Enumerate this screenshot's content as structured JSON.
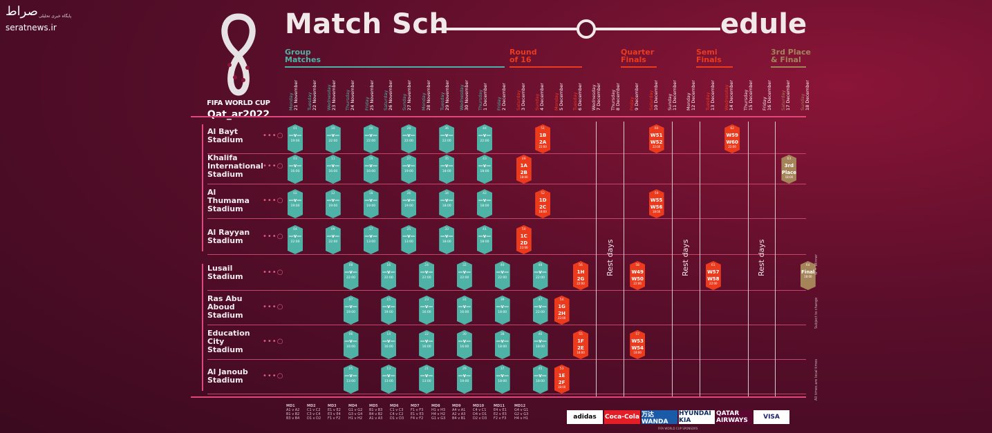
{
  "watermark": {
    "logo": "صراط",
    "sub": "پایگاه خبری تحلیلی",
    "site": "seratnews.ir"
  },
  "emblem": {
    "title": "FIFA WORLD CUP",
    "host": "Qat_ar2022"
  },
  "headline": {
    "part1": "Match Sch",
    "part2": "edule"
  },
  "phases": [
    {
      "label": "Group\nMatches",
      "color": "#4fb2a6"
    },
    {
      "label": "Round\nof 16",
      "color": "#ec3a1d"
    },
    {
      "label": "Quarter\nFinals",
      "color": "#ec3a1d"
    },
    {
      "label": "Semi\nFinals",
      "color": "#ec3a1d"
    },
    {
      "label": "3rd Place\n& Final",
      "color": "#a5845a"
    }
  ],
  "days": [
    {
      "dow": "Monday",
      "date": "21 November",
      "phase": "group"
    },
    {
      "dow": "Tuesday",
      "date": "22 November",
      "phase": "group"
    },
    {
      "dow": "Wednesday",
      "date": "23 November",
      "phase": "group"
    },
    {
      "dow": "Thursday",
      "date": "24 November",
      "phase": "group"
    },
    {
      "dow": "Friday",
      "date": "25 November",
      "phase": "group"
    },
    {
      "dow": "Saturday",
      "date": "26 November",
      "phase": "group"
    },
    {
      "dow": "Sunday",
      "date": "27 November",
      "phase": "group"
    },
    {
      "dow": "Monday",
      "date": "28 November",
      "phase": "group"
    },
    {
      "dow": "Tuesday",
      "date": "29 November",
      "phase": "group"
    },
    {
      "dow": "Wednesday",
      "date": "30 November",
      "phase": "group"
    },
    {
      "dow": "Thursday",
      "date": "1 December",
      "phase": "group"
    },
    {
      "dow": "Friday",
      "date": "2 December",
      "phase": "group"
    },
    {
      "dow": "Saturday",
      "date": "3 December",
      "phase": "ko"
    },
    {
      "dow": "Sunday",
      "date": "4 December",
      "phase": "ko"
    },
    {
      "dow": "Monday",
      "date": "5 December",
      "phase": "ko"
    },
    {
      "dow": "Tuesday",
      "date": "6 December",
      "phase": "ko"
    },
    {
      "dow": "Wednesday",
      "date": "7 December",
      "phase": "rest"
    },
    {
      "dow": "Thursday",
      "date": "8 December",
      "phase": "rest"
    },
    {
      "dow": "Friday",
      "date": "9 December",
      "phase": "ko"
    },
    {
      "dow": "Saturday",
      "date": "10 December",
      "phase": "ko"
    },
    {
      "dow": "Sunday",
      "date": "11 December",
      "phase": "rest"
    },
    {
      "dow": "Monday",
      "date": "12 December",
      "phase": "rest"
    },
    {
      "dow": "Tuesday",
      "date": "13 December",
      "phase": "ko"
    },
    {
      "dow": "Wednesday",
      "date": "14 December",
      "phase": "ko"
    },
    {
      "dow": "Thursday",
      "date": "15 December",
      "phase": "rest"
    },
    {
      "dow": "Friday",
      "date": "16 December",
      "phase": "rest"
    },
    {
      "dow": "Saturday",
      "date": "17 December",
      "phase": "final"
    },
    {
      "dow": "Sunday",
      "date": "18 December",
      "phase": "final"
    }
  ],
  "stadiums": [
    "Al Bayt\nStadium",
    "Khalifa\nInternational\nStadium",
    "Al\nThumama\nStadium",
    "Al Rayyan\nStadium",
    "Lusail\nStadium",
    "Ras Abu\nAboud\nStadium",
    "Education\nCity\nStadium",
    "Al Janoub\nStadium"
  ],
  "group_matches": [
    {
      "row": 0,
      "day": 0,
      "no": "01",
      "teams": "A1\nA2",
      "time": "19:00"
    },
    {
      "row": 0,
      "day": 1,
      "no": "10",
      "teams": "",
      "time": "22:00"
    },
    {
      "row": 0,
      "day": 2,
      "no": "20",
      "teams": "",
      "time": "22:00"
    },
    {
      "row": 0,
      "day": 3,
      "no": "28",
      "teams": "",
      "time": "22:00"
    },
    {
      "row": 0,
      "day": 4,
      "no": "36",
      "teams": "",
      "time": "22:00"
    },
    {
      "row": 0,
      "day": 5,
      "no": "44",
      "teams": "",
      "time": "22:00"
    },
    {
      "row": 1,
      "day": 0,
      "no": "03",
      "teams": "",
      "time": "16:00"
    },
    {
      "row": 1,
      "day": 1,
      "no": "11",
      "teams": "",
      "time": "16:00"
    },
    {
      "row": 1,
      "day": 2,
      "no": "19",
      "teams": "",
      "time": "16:00"
    },
    {
      "row": 1,
      "day": 3,
      "no": "27",
      "teams": "",
      "time": "19:00"
    },
    {
      "row": 1,
      "day": 4,
      "no": "35",
      "teams": "",
      "time": "18:00"
    },
    {
      "row": 1,
      "day": 5,
      "no": "43",
      "teams": "",
      "time": "18:00"
    },
    {
      "row": 2,
      "day": 0,
      "no": "02",
      "teams": "",
      "time": "19:00"
    },
    {
      "row": 2,
      "day": 1,
      "no": "12",
      "teams": "",
      "time": "19:00"
    },
    {
      "row": 2,
      "day": 2,
      "no": "18",
      "teams": "",
      "time": "19:00"
    },
    {
      "row": 2,
      "day": 3,
      "no": "26",
      "teams": "",
      "time": "19:00"
    },
    {
      "row": 2,
      "day": 4,
      "no": "34",
      "teams": "",
      "time": "18:00"
    },
    {
      "row": 2,
      "day": 5,
      "no": "42",
      "teams": "",
      "time": "18:00"
    },
    {
      "row": 3,
      "day": 0,
      "no": "04",
      "teams": "",
      "time": "22:00"
    },
    {
      "row": 3,
      "day": 1,
      "no": "09",
      "teams": "",
      "time": "22:00"
    },
    {
      "row": 3,
      "day": 2,
      "no": "17",
      "teams": "",
      "time": "13:00"
    },
    {
      "row": 3,
      "day": 3,
      "no": "25",
      "teams": "",
      "time": "13:00"
    },
    {
      "row": 3,
      "day": 4,
      "no": "33",
      "teams": "",
      "time": "18:00"
    },
    {
      "row": 3,
      "day": 5,
      "no": "41",
      "teams": "",
      "time": "18:00"
    },
    {
      "row": 4,
      "day": 1,
      "no": "08",
      "teams": "",
      "time": "22:00"
    },
    {
      "row": 4,
      "day": 2,
      "no": "16",
      "teams": "",
      "time": "22:00"
    },
    {
      "row": 4,
      "day": 3,
      "no": "24",
      "teams": "",
      "time": "22:00"
    },
    {
      "row": 4,
      "day": 4,
      "no": "32",
      "teams": "",
      "time": "22:00"
    },
    {
      "row": 4,
      "day": 5,
      "no": "40",
      "teams": "",
      "time": "22:00"
    },
    {
      "row": 4,
      "day": 6,
      "no": "48",
      "teams": "",
      "time": "22:00"
    },
    {
      "row": 5,
      "day": 1,
      "no": "07",
      "teams": "",
      "time": "19:00"
    },
    {
      "row": 5,
      "day": 2,
      "no": "15",
      "teams": "",
      "time": "19:00"
    },
    {
      "row": 5,
      "day": 3,
      "no": "23",
      "teams": "",
      "time": "16:00"
    },
    {
      "row": 5,
      "day": 4,
      "no": "31",
      "teams": "",
      "time": "16:00"
    },
    {
      "row": 5,
      "day": 5,
      "no": "39",
      "teams": "",
      "time": "18:00"
    },
    {
      "row": 5,
      "day": 6,
      "no": "47",
      "teams": "",
      "time": "22:00"
    },
    {
      "row": 6,
      "day": 1,
      "no": "06",
      "teams": "",
      "time": "16:00"
    },
    {
      "row": 6,
      "day": 2,
      "no": "14",
      "teams": "",
      "time": "16:00"
    },
    {
      "row": 6,
      "day": 3,
      "no": "22",
      "teams": "",
      "time": "16:00"
    },
    {
      "row": 6,
      "day": 4,
      "no": "30",
      "teams": "",
      "time": "16:00"
    },
    {
      "row": 6,
      "day": 5,
      "no": "38",
      "teams": "",
      "time": "18:00"
    },
    {
      "row": 6,
      "day": 6,
      "no": "46",
      "teams": "",
      "time": "18:00"
    },
    {
      "row": 7,
      "day": 1,
      "no": "05",
      "teams": "",
      "time": "13:00"
    },
    {
      "row": 7,
      "day": 2,
      "no": "13",
      "teams": "",
      "time": "13:00"
    },
    {
      "row": 7,
      "day": 3,
      "no": "21",
      "teams": "",
      "time": "13:00"
    },
    {
      "row": 7,
      "day": 4,
      "no": "29",
      "teams": "",
      "time": "19:00"
    },
    {
      "row": 7,
      "day": 5,
      "no": "37",
      "teams": "",
      "time": "18:00"
    },
    {
      "row": 7,
      "day": 6,
      "no": "45",
      "teams": "",
      "time": "18:00"
    }
  ],
  "ko_matches": [
    {
      "row": 0,
      "col": 13,
      "no": "51",
      "top": "1B",
      "bottom": "2A",
      "time": "22:00",
      "kind": "ko"
    },
    {
      "row": 1,
      "col": 12,
      "no": "49",
      "top": "1A",
      "bottom": "2B",
      "time": "18:00",
      "kind": "ko"
    },
    {
      "row": 2,
      "col": 13,
      "no": "52",
      "top": "1D",
      "bottom": "2C",
      "time": "18:00",
      "kind": "ko"
    },
    {
      "row": 3,
      "col": 12,
      "no": "50",
      "top": "1C",
      "bottom": "2D",
      "time": "22:00",
      "kind": "ko"
    },
    {
      "row": 4,
      "col": 15,
      "no": "56",
      "top": "1H",
      "bottom": "2G",
      "time": "22:00",
      "kind": "ko"
    },
    {
      "row": 5,
      "col": 14,
      "no": "54",
      "top": "1G",
      "bottom": "2H",
      "time": "22:00",
      "kind": "ko"
    },
    {
      "row": 6,
      "col": 15,
      "no": "55",
      "top": "1F",
      "bottom": "2E",
      "time": "18:00",
      "kind": "ko"
    },
    {
      "row": 7,
      "col": 14,
      "no": "53",
      "top": "1E",
      "bottom": "2F",
      "time": "18:00",
      "kind": "ko"
    },
    {
      "row": 0,
      "col": 19,
      "no": "60",
      "top": "W51",
      "bottom": "W52",
      "time": "22:00",
      "kind": "ko"
    },
    {
      "row": 2,
      "col": 19,
      "no": "59",
      "top": "W55",
      "bottom": "W56",
      "time": "18:00",
      "kind": "ko"
    },
    {
      "row": 4,
      "col": 18,
      "no": "58",
      "top": "W49",
      "bottom": "W50",
      "time": "22:00",
      "kind": "ko"
    },
    {
      "row": 6,
      "col": 18,
      "no": "57",
      "top": "W53",
      "bottom": "W54",
      "time": "18:00",
      "kind": "ko"
    },
    {
      "row": 0,
      "col": 23,
      "no": "62",
      "top": "W59",
      "bottom": "W60",
      "time": "22:00",
      "kind": "ko"
    },
    {
      "row": 4,
      "col": 22,
      "no": "61",
      "top": "W57",
      "bottom": "W58",
      "time": "22:00",
      "kind": "ko"
    },
    {
      "row": 1,
      "col": 26,
      "no": "63",
      "top": "3rd",
      "bottom": "Place",
      "time": "18:00",
      "kind": "gold"
    },
    {
      "row": 4,
      "col": 27,
      "no": "64",
      "top": "",
      "bottom": "Final",
      "time": "18:00",
      "kind": "gold"
    }
  ],
  "rest_days": [
    {
      "label": "Rest days"
    },
    {
      "label": "Rest days"
    },
    {
      "label": "Rest days"
    }
  ],
  "matchdays": [
    {
      "head": "MD1",
      "lines": "A1 v A2\nB1 v B2\nB3 v B4"
    },
    {
      "head": "MD2",
      "lines": "C1 v C2\nC3 v C4\nD1 v D2"
    },
    {
      "head": "MD3",
      "lines": "E1 v E2\nE3 v E4\nF1 v F2"
    },
    {
      "head": "MD4",
      "lines": "G1 v G2\nG3 v G4\nH1 v H2"
    },
    {
      "head": "MD5",
      "lines": "B1 v B3\nB4 v B2\nA1 v A3"
    },
    {
      "head": "MD6",
      "lines": "C1 v C3\nC4 v C2\nD1 v D3"
    },
    {
      "head": "MD7",
      "lines": "F1 v F3\nE1 v E3\nF4 v F2"
    },
    {
      "head": "MD8",
      "lines": "H1 v H3\nH4 v H2\nG1 v G3"
    },
    {
      "head": "MD9",
      "lines": "A4 v A1\nA2 v A3\nB4 v B1"
    },
    {
      "head": "MD10",
      "lines": "C4 v C1\nD4 v D1\nD2 v D3"
    },
    {
      "head": "MD11",
      "lines": "E4 v E1\nE2 v E3\nF2 v F3"
    },
    {
      "head": "MD12",
      "lines": "G4 v G1\nG2 v G3\nH4 v H1"
    }
  ],
  "sponsors": [
    {
      "name": "adidas",
      "bg": "#ffffff",
      "fg": "#000000"
    },
    {
      "name": "Coca-Cola",
      "bg": "#e31e26",
      "fg": "#ffffff"
    },
    {
      "name": "万达 WANDA",
      "bg": "#1a5aa7",
      "fg": "#ffffff"
    },
    {
      "name": "HYUNDAI KIA",
      "bg": "#ffffff",
      "fg": "#0a2a5e"
    },
    {
      "name": "QATAR AIRWAYS",
      "bg": "#5c0632",
      "fg": "#ffffff"
    },
    {
      "name": "VISA",
      "bg": "#ffffff",
      "fg": "#1a1f71"
    }
  ],
  "side_notes": [
    "W = Winner",
    "Subject to change",
    "All times are local times"
  ],
  "footnote": "FIFA WORLD CUP SPONSORS"
}
